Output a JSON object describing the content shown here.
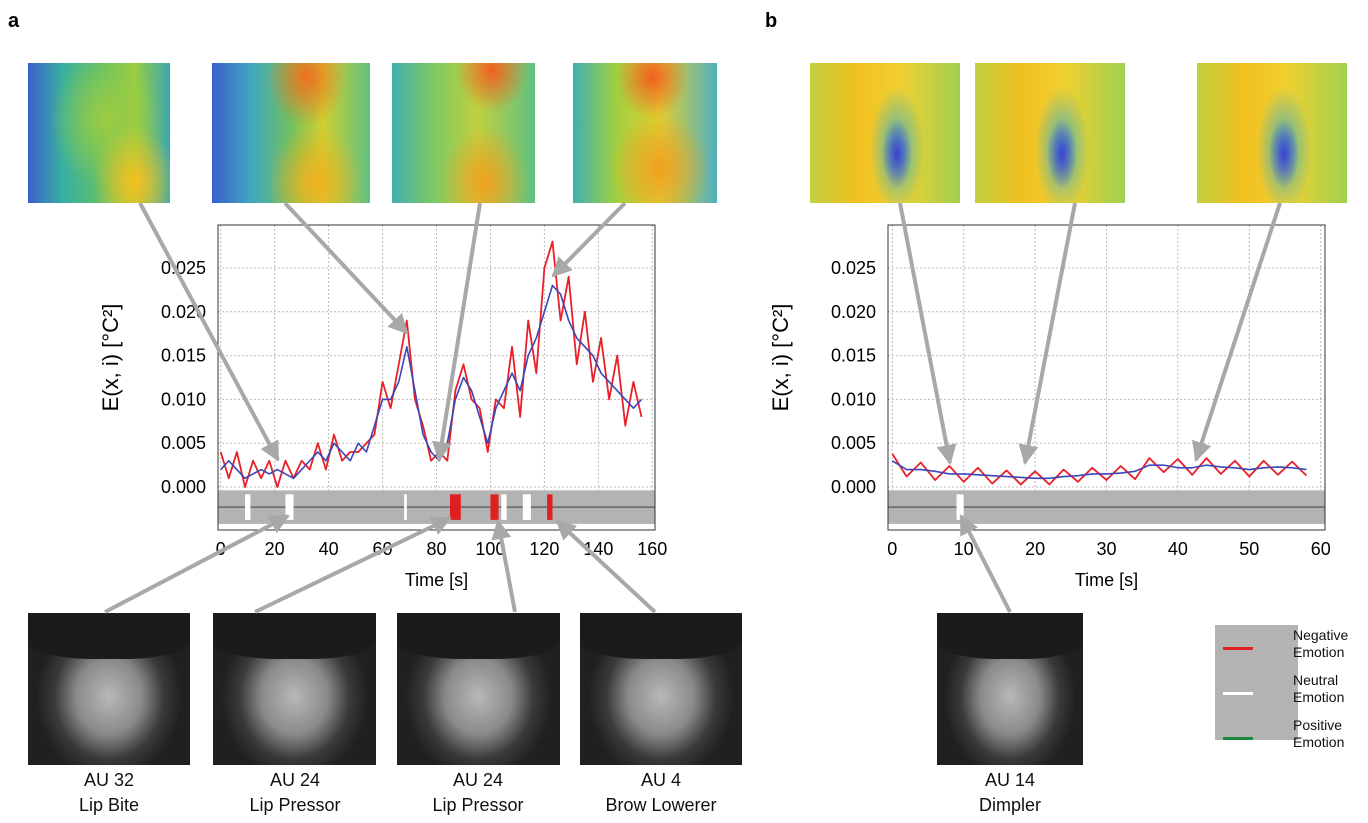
{
  "panel_labels": [
    "a",
    "b"
  ],
  "chart_data": [
    {
      "type": "line",
      "x_label": "Time [s]",
      "y_label": "E(x, i) [°C²]",
      "x": [
        0,
        3,
        6,
        9,
        12,
        15,
        18,
        21,
        24,
        27,
        30,
        33,
        36,
        39,
        42,
        45,
        48,
        51,
        54,
        57,
        60,
        63,
        66,
        69,
        72,
        75,
        78,
        81,
        84,
        87,
        90,
        93,
        96,
        99,
        102,
        105,
        108,
        111,
        114,
        117,
        120,
        123,
        126,
        129,
        132,
        135,
        138,
        141,
        144,
        147,
        150,
        153,
        156
      ],
      "series": [
        {
          "color": "#e8202a",
          "values": [
            0.004,
            0.001,
            0.004,
            0.0,
            0.003,
            0.001,
            0.003,
            0.0,
            0.003,
            0.001,
            0.003,
            0.002,
            0.005,
            0.002,
            0.006,
            0.003,
            0.004,
            0.004,
            0.005,
            0.006,
            0.012,
            0.009,
            0.014,
            0.019,
            0.01,
            0.007,
            0.003,
            0.004,
            0.003,
            0.011,
            0.014,
            0.01,
            0.009,
            0.004,
            0.01,
            0.009,
            0.016,
            0.008,
            0.019,
            0.013,
            0.025,
            0.028,
            0.019,
            0.024,
            0.014,
            0.02,
            0.012,
            0.017,
            0.01,
            0.015,
            0.007,
            0.012,
            0.008
          ]
        },
        {
          "color": "#3b47b8",
          "values": [
            0.002,
            0.003,
            0.002,
            0.001,
            0.0015,
            0.002,
            0.0015,
            0.002,
            0.0015,
            0.001,
            0.002,
            0.003,
            0.004,
            0.003,
            0.005,
            0.004,
            0.003,
            0.005,
            0.004,
            0.007,
            0.01,
            0.01,
            0.012,
            0.016,
            0.011,
            0.006,
            0.004,
            0.003,
            0.005,
            0.01,
            0.0125,
            0.011,
            0.008,
            0.005,
            0.009,
            0.011,
            0.013,
            0.011,
            0.015,
            0.017,
            0.02,
            0.023,
            0.022,
            0.019,
            0.017,
            0.016,
            0.015,
            0.013,
            0.012,
            0.011,
            0.01,
            0.009,
            0.01
          ]
        }
      ],
      "xlim": [
        -1,
        161
      ],
      "xticks": [
        0,
        20,
        40,
        60,
        80,
        100,
        120,
        140,
        160
      ],
      "ylim": [
        -0.0049,
        0.0299
      ],
      "yticks": [
        {
          "value": 0,
          "label": "0.000"
        },
        {
          "value": 0.005,
          "label": "0.005"
        },
        {
          "value": 0.01,
          "label": "0.010"
        },
        {
          "value": 0.015,
          "label": "0.015"
        },
        {
          "value": 0.02,
          "label": "0.020"
        },
        {
          "value": 0.025,
          "label": "0.025"
        }
      ],
      "grid": true,
      "events": [
        {
          "start": 9,
          "end": 11,
          "color": "#ffffff"
        },
        {
          "start": 24,
          "end": 27,
          "color": "#ffffff"
        },
        {
          "start": 68,
          "end": 69,
          "color": "#ffffff"
        },
        {
          "start": 85,
          "end": 89,
          "color": "#e02020"
        },
        {
          "start": 100,
          "end": 103,
          "color": "#e02020"
        },
        {
          "start": 104,
          "end": 106,
          "color": "#ffffff"
        },
        {
          "start": 112,
          "end": 115,
          "color": "#ffffff"
        },
        {
          "start": 121,
          "end": 123,
          "color": "#e02020"
        }
      ]
    },
    {
      "type": "line",
      "x_label": "Time [s]",
      "y_label": "E(x, i) [°C²]",
      "x": [
        0,
        2,
        4,
        6,
        8,
        10,
        12,
        14,
        16,
        18,
        20,
        22,
        24,
        26,
        28,
        30,
        32,
        34,
        36,
        38,
        40,
        42,
        44,
        46,
        48,
        50,
        52,
        54,
        56,
        58
      ],
      "series": [
        {
          "color": "#e8202a",
          "values": [
            0.0038,
            0.0012,
            0.0028,
            0.0008,
            0.0024,
            0.0006,
            0.0022,
            0.0004,
            0.0019,
            0.0003,
            0.0018,
            0.0003,
            0.002,
            0.0006,
            0.0022,
            0.0008,
            0.0024,
            0.0009,
            0.0033,
            0.0017,
            0.0032,
            0.0014,
            0.0033,
            0.0015,
            0.003,
            0.0012,
            0.003,
            0.0014,
            0.0029,
            0.0013
          ]
        },
        {
          "color": "#3b47b8",
          "values": [
            0.003,
            0.002,
            0.002,
            0.0018,
            0.0015,
            0.0015,
            0.0014,
            0.0013,
            0.0012,
            0.0011,
            0.001,
            0.001,
            0.0012,
            0.0013,
            0.0015,
            0.0015,
            0.0016,
            0.0018,
            0.0025,
            0.0025,
            0.0022,
            0.0022,
            0.0025,
            0.0023,
            0.0022,
            0.002,
            0.0022,
            0.0023,
            0.0022,
            0.002
          ]
        }
      ],
      "xlim": [
        -0.6,
        60.6
      ],
      "xticks": [
        0,
        10,
        20,
        30,
        40,
        50,
        60
      ],
      "ylim": [
        -0.0049,
        0.0299
      ],
      "yticks": [
        {
          "value": 0,
          "label": "0.000"
        },
        {
          "value": 0.005,
          "label": "0.005"
        },
        {
          "value": 0.01,
          "label": "0.010"
        },
        {
          "value": 0.015,
          "label": "0.015"
        },
        {
          "value": 0.02,
          "label": "0.020"
        },
        {
          "value": 0.025,
          "label": "0.025"
        }
      ],
      "grid": true,
      "events": [
        {
          "start": 9,
          "end": 10,
          "color": "#ffffff"
        }
      ]
    }
  ],
  "faces": [
    {
      "au": "AU 32",
      "name": "Lip Bite"
    },
    {
      "au": "AU 24",
      "name": "Lip Pressor"
    },
    {
      "au": "AU 24",
      "name": "Lip Pressor"
    },
    {
      "au": "AU 4",
      "name": "Brow Lowerer"
    },
    {
      "au": "AU 14",
      "name": "Dimpler"
    }
  ],
  "legend": [
    {
      "name": "Negative Emotion",
      "color": "#e02020"
    },
    {
      "name": "Neutral Emotion",
      "color": "#ffffff"
    },
    {
      "name": "Positive Emotion",
      "color": "#1a8a3a"
    }
  ]
}
